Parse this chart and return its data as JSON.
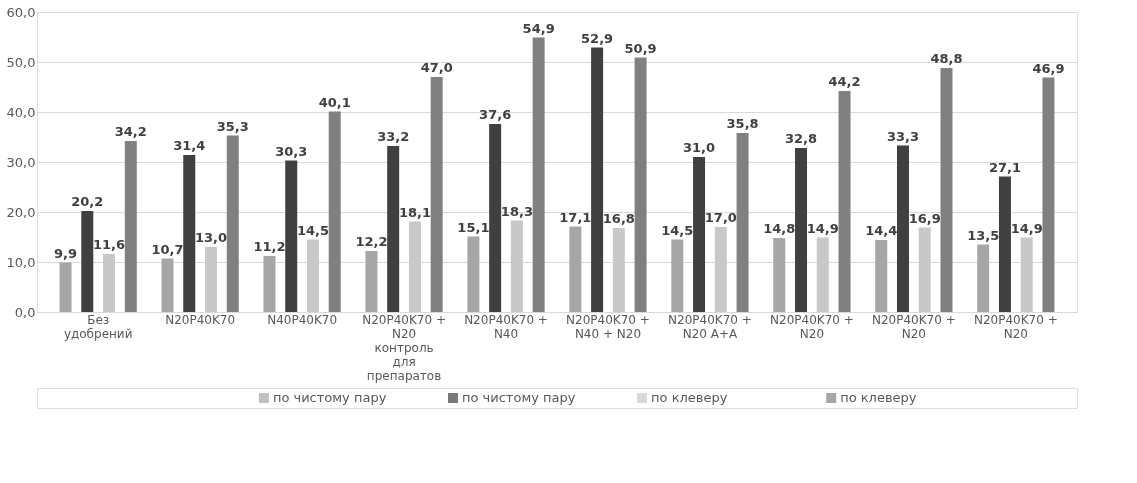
{
  "chart_data": {
    "type": "bar",
    "categories": [
      "Без удобрений",
      "N20P40K70",
      "N40P40K70",
      "N20P40K70 + N20 контроль для препаратов",
      "N20P40K70 + N40",
      "N20P40K70 + N40 + N20",
      "N20P40K70 + N20 А+А",
      "N20P40K70 + N20",
      "N20P40K70 + N20",
      "N20P40K70 + N20"
    ],
    "series": [
      {
        "name": "по чистому пару",
        "color": "#a6a6a6",
        "values": [
          9.9,
          10.7,
          11.2,
          12.2,
          15.1,
          17.1,
          14.5,
          14.8,
          14.4,
          13.5
        ],
        "value_labels": [
          "9,9",
          "10,7",
          "11,2",
          "12,2",
          "15,1",
          "17,1",
          "14,5",
          "14,8",
          "14,4",
          "13,5"
        ]
      },
      {
        "name": "по чистому пару",
        "color": "#404040",
        "values": [
          20.2,
          31.4,
          30.3,
          33.2,
          37.6,
          52.9,
          31.0,
          32.8,
          33.3,
          27.1
        ],
        "value_labels": [
          "20,2",
          "31,4",
          "30,3",
          "33,2",
          "37,6",
          "52,9",
          "31,0",
          "32,8",
          "33,3",
          "27,1"
        ]
      },
      {
        "name": "по клеверу",
        "color": "#c8c8c8",
        "values": [
          11.6,
          13.0,
          14.5,
          18.1,
          18.3,
          16.8,
          17.0,
          14.9,
          16.9,
          14.9
        ],
        "value_labels": [
          "11,6",
          "13,0",
          "14,5",
          "18,1",
          "18,3",
          "16,8",
          "17,0",
          "14,9",
          "16,9",
          "14,9"
        ]
      },
      {
        "name": "по клеверу",
        "color": "#808080",
        "values": [
          34.2,
          35.3,
          40.1,
          47.0,
          54.9,
          50.9,
          35.8,
          44.2,
          48.8,
          46.9
        ],
        "value_labels": [
          "34,2",
          "35,3",
          "40,1",
          "47,0",
          "54,9",
          "50,9",
          "35,8",
          "44,2",
          "48,8",
          "46,9"
        ]
      }
    ],
    "ylim": [
      0,
      60
    ],
    "yticks": [
      {
        "value": 0,
        "label": "0,0"
      },
      {
        "value": 10,
        "label": "10,0"
      },
      {
        "value": 20,
        "label": "20,0"
      },
      {
        "value": 30,
        "label": "30,0"
      },
      {
        "value": 40,
        "label": "40,0"
      },
      {
        "value": 50,
        "label": "50,0"
      },
      {
        "value": 60,
        "label": "60,0"
      }
    ],
    "grid": "y",
    "legend": "bottom"
  }
}
